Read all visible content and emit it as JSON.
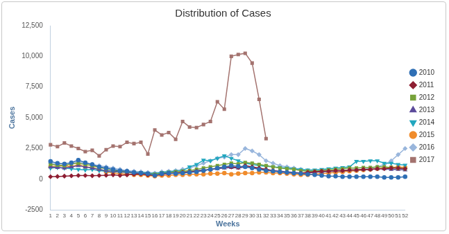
{
  "chart_data": {
    "type": "line",
    "title": "Distribution of Cases",
    "x_label": "Weeks",
    "y_label": "Cases",
    "categories": [
      "1",
      "2",
      "3",
      "4",
      "5",
      "6",
      "7",
      "8",
      "9",
      "10",
      "11",
      "12",
      "13",
      "14",
      "15",
      "16",
      "17",
      "18",
      "19",
      "20",
      "21",
      "22",
      "23",
      "24",
      "25",
      "26",
      "27",
      "28",
      "29",
      "30",
      "31",
      "32",
      "33",
      "34",
      "35",
      "36",
      "37",
      "38",
      "39",
      "40",
      "41",
      "42",
      "43",
      "44",
      "45",
      "46",
      "47",
      "48",
      "49",
      "50",
      "51",
      "52"
    ],
    "ylim": [
      -2500,
      12500
    ],
    "yticks": [
      -2500,
      0,
      {
        "value": 2500,
        "label": "2,500"
      },
      {
        "value": 5000,
        "label": "5,000"
      },
      {
        "value": 7500,
        "label": "7,500"
      },
      {
        "value": 10000,
        "label": "10,000"
      },
      {
        "value": 12500,
        "label": "12,500"
      }
    ],
    "grid": false,
    "legend": "right",
    "series": [
      {
        "name": "2010",
        "color": "#2f6fb5",
        "marker": "circle",
        "values": [
          1450,
          1300,
          1250,
          1350,
          1550,
          1350,
          1200,
          1000,
          900,
          800,
          700,
          650,
          550,
          500,
          450,
          300,
          450,
          500,
          450,
          500,
          550,
          600,
          700,
          800,
          900,
          1000,
          1100,
          1050,
          1000,
          900,
          800,
          700,
          650,
          600,
          550,
          500,
          450,
          400,
          350,
          300,
          250,
          250,
          200,
          200,
          200,
          200,
          200,
          200,
          150,
          150,
          150,
          200
        ]
      },
      {
        "name": "2011",
        "color": "#8e1f33",
        "marker": "diamond",
        "values": [
          200,
          220,
          250,
          270,
          300,
          300,
          280,
          300,
          320,
          350,
          300,
          350,
          400,
          420,
          350,
          300,
          400,
          450,
          500,
          550,
          600,
          650,
          700,
          800,
          900,
          1000,
          1000,
          950,
          1100,
          1000,
          900,
          800,
          700,
          600,
          550,
          500,
          500,
          550,
          600,
          650,
          650,
          700,
          700,
          750,
          750,
          800,
          800,
          850,
          850,
          900,
          900,
          850
        ]
      },
      {
        "name": "2012",
        "color": "#77a23a",
        "marker": "square",
        "values": [
          1200,
          1150,
          1100,
          1250,
          1300,
          1200,
          1100,
          950,
          850,
          750,
          650,
          600,
          550,
          500,
          450,
          400,
          500,
          550,
          600,
          650,
          700,
          800,
          900,
          1000,
          1100,
          1200,
          1300,
          1250,
          1350,
          1300,
          1200,
          1100,
          1000,
          900,
          850,
          800,
          700,
          650,
          650,
          700,
          750,
          800,
          850,
          900,
          900,
          950,
          950,
          1000,
          1000,
          950,
          900,
          850
        ]
      },
      {
        "name": "2013",
        "color": "#5c4b9b",
        "marker": "triangle",
        "values": [
          1000,
          950,
          900,
          1000,
          1100,
          1000,
          900,
          800,
          700,
          650,
          600,
          550,
          500,
          450,
          400,
          350,
          400,
          450,
          500,
          550,
          600,
          700,
          750,
          800,
          850,
          900,
          950,
          900,
          1000,
          950,
          850,
          800,
          700,
          650,
          600,
          550,
          500,
          500,
          550,
          600,
          650,
          700,
          700,
          750,
          750,
          800,
          800,
          850,
          850,
          800,
          800,
          750
        ]
      },
      {
        "name": "2014",
        "color": "#22a7bf",
        "marker": "triangle-down",
        "values": [
          900,
          950,
          900,
          850,
          800,
          750,
          800,
          700,
          650,
          600,
          600,
          550,
          500,
          550,
          500,
          450,
          550,
          600,
          650,
          700,
          1000,
          1200,
          1550,
          1500,
          1700,
          1900,
          1700,
          1500,
          1300,
          1200,
          1100,
          1050,
          1000,
          950,
          900,
          850,
          800,
          750,
          750,
          800,
          850,
          900,
          950,
          1000,
          1450,
          1450,
          1500,
          1500,
          1300,
          1300,
          1200,
          1150
        ]
      },
      {
        "name": "2015",
        "color": "#f08c2c",
        "marker": "circle",
        "values": [
          1000,
          1050,
          1100,
          1000,
          1200,
          1000,
          950,
          800,
          600,
          500,
          450,
          400,
          350,
          350,
          300,
          250,
          300,
          300,
          350,
          350,
          400,
          400,
          400,
          450,
          450,
          500,
          400,
          450,
          500,
          500,
          550,
          550,
          500,
          500,
          450,
          400,
          350,
          350,
          400,
          450,
          500,
          550,
          600,
          650,
          700,
          750,
          800,
          850,
          900,
          950,
          1000,
          950
        ]
      },
      {
        "name": "2016",
        "color": "#99b6dc",
        "marker": "diamond",
        "values": [
          1300,
          1200,
          1100,
          1300,
          1400,
          1300,
          1200,
          1100,
          1000,
          900,
          800,
          700,
          650,
          600,
          550,
          500,
          600,
          650,
          700,
          800,
          900,
          1100,
          1300,
          1500,
          1700,
          1800,
          2000,
          2000,
          2500,
          2300,
          2000,
          1500,
          1300,
          1100,
          1000,
          900,
          800,
          700,
          650,
          600,
          600,
          650,
          650,
          700,
          750,
          800,
          900,
          1000,
          1200,
          1500,
          2000,
          2500
        ]
      },
      {
        "name": "2017",
        "color": "#a4736f",
        "marker": "square",
        "values": [
          2800,
          2650,
          2950,
          2700,
          2500,
          2250,
          2350,
          1900,
          2400,
          2700,
          2650,
          3000,
          2900,
          3000,
          2050,
          4000,
          3600,
          3800,
          3250,
          4700,
          4250,
          4200,
          4450,
          4700,
          6300,
          5700,
          10000,
          10150,
          10250,
          9450,
          6500,
          3300,
          null,
          null,
          null,
          null,
          null,
          null,
          null,
          null,
          null,
          null,
          null,
          null,
          null,
          null,
          null,
          null,
          null,
          null,
          null,
          null
        ]
      }
    ]
  }
}
